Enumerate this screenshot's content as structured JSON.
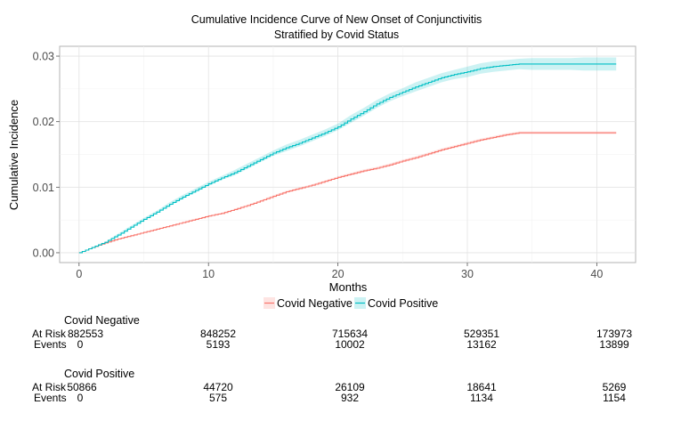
{
  "chart_data": {
    "type": "line",
    "title": "Cumulative Incidence Curve of New Onset of Conjunctivitis",
    "subtitle": "Stratified by Covid Status",
    "xlabel": "Months",
    "ylabel": "Cumulative Incidence",
    "xlim": [
      -1.5,
      43
    ],
    "ylim": [
      -0.0015,
      0.0315
    ],
    "x_ticks": [
      0,
      10,
      20,
      30,
      40
    ],
    "x_tick_labels": [
      "0",
      "10",
      "20",
      "30",
      "40"
    ],
    "y_ticks": [
      0,
      0.01,
      0.02,
      0.03
    ],
    "y_tick_labels": [
      "0.00",
      "0.01",
      "0.02",
      "0.03"
    ],
    "grid": true,
    "legend_position": "bottom",
    "series": [
      {
        "name": "Covid Negative",
        "color": "#F8766D",
        "ci_halfwidth": [
          0,
          5e-05,
          0.0001,
          0.00015,
          0.0002,
          0.0002,
          0.0002,
          0.0002
        ],
        "x": [
          0,
          1,
          2,
          3,
          4,
          5,
          6,
          7,
          8,
          9,
          10,
          11,
          12,
          13,
          14,
          15,
          16,
          17,
          18,
          19,
          20,
          21,
          22,
          23,
          24,
          25,
          26,
          27,
          28,
          29,
          30,
          31,
          32,
          33,
          34,
          35,
          36,
          37,
          38,
          39,
          40,
          41.5
        ],
        "y": [
          0,
          0.0008,
          0.0015,
          0.0021,
          0.0026,
          0.0031,
          0.0036,
          0.0041,
          0.0046,
          0.0051,
          0.0056,
          0.006,
          0.0066,
          0.0072,
          0.0079,
          0.0086,
          0.0093,
          0.0098,
          0.0103,
          0.0109,
          0.0115,
          0.012,
          0.0125,
          0.0129,
          0.0134,
          0.014,
          0.0145,
          0.0151,
          0.0157,
          0.0162,
          0.0167,
          0.0172,
          0.0176,
          0.018,
          0.0183,
          0.0183,
          0.0183,
          0.0183,
          0.0183,
          0.0183,
          0.0183,
          0.0183
        ]
      },
      {
        "name": "Covid Positive",
        "color": "#00BFC4",
        "ci_halfwidth": [
          0,
          0.0002,
          0.0003,
          0.0004,
          0.0005,
          0.0006,
          0.0007,
          0.0008,
          0.0009,
          0.001
        ],
        "x": [
          0,
          1,
          2,
          3,
          4,
          5,
          6,
          7,
          8,
          9,
          10,
          11,
          12,
          13,
          14,
          15,
          16,
          17,
          18,
          19,
          20,
          21,
          22,
          23,
          24,
          25,
          26,
          27,
          28,
          29,
          30,
          31,
          32,
          33,
          34,
          35,
          36,
          37,
          38,
          39,
          40,
          41.5
        ],
        "y": [
          0,
          0.0008,
          0.0016,
          0.0027,
          0.0039,
          0.0051,
          0.0062,
          0.0074,
          0.0085,
          0.0095,
          0.0105,
          0.0114,
          0.0122,
          0.0132,
          0.0142,
          0.0152,
          0.016,
          0.0167,
          0.0175,
          0.0183,
          0.0192,
          0.0204,
          0.0215,
          0.0227,
          0.0237,
          0.0245,
          0.0253,
          0.026,
          0.0267,
          0.0272,
          0.0276,
          0.0281,
          0.0284,
          0.0286,
          0.0288,
          0.0288,
          0.0288,
          0.0288,
          0.0288,
          0.0288,
          0.0288,
          0.0288
        ]
      }
    ]
  },
  "risk_table": {
    "row_labels": {
      "at_risk": "At Risk",
      "events": "Events"
    },
    "groups": [
      {
        "name": "Covid Negative",
        "at_risk": [
          "882553",
          "848252",
          "715634",
          "529351",
          "173973"
        ],
        "events": [
          "0",
          "5193",
          "10002",
          "13162",
          "13899"
        ]
      },
      {
        "name": "Covid Positive",
        "at_risk": [
          "50866",
          "44720",
          "26109",
          "18641",
          "5269"
        ],
        "events": [
          "0",
          "575",
          "932",
          "1134",
          "1154"
        ]
      }
    ]
  }
}
